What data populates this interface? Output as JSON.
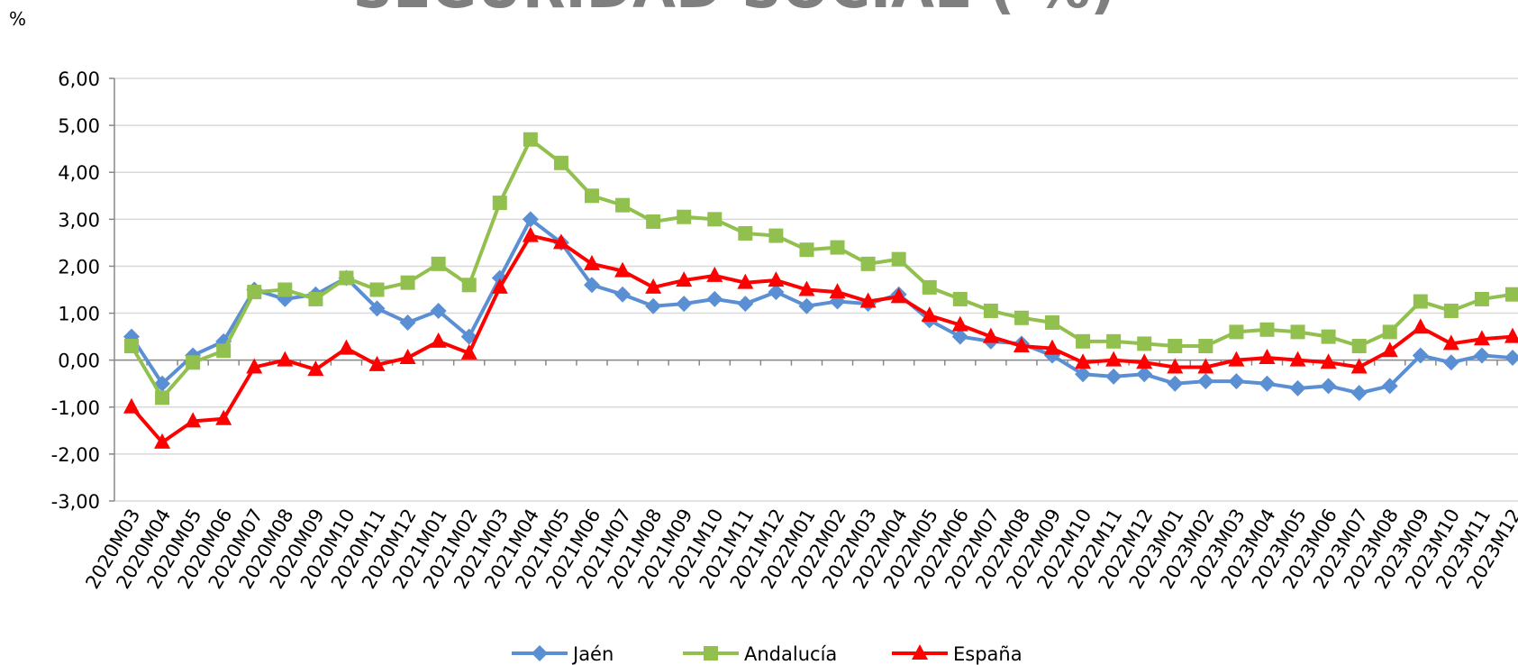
{
  "chart_data": {
    "type": "line",
    "title": "SEGURIDAD SOCIAL ( %)",
    "y_label": "%",
    "categories": [
      "2020M03",
      "2020M04",
      "2020M05",
      "2020M06",
      "2020M07",
      "2020M08",
      "2020M09",
      "2020M10",
      "2020M11",
      "2020M12",
      "2021M01",
      "2021M02",
      "2021M03",
      "2021M04",
      "2021M05",
      "2021M06",
      "2021M07",
      "2021M08",
      "2021M09",
      "2021M10",
      "2021M11",
      "2021M12",
      "2022M01",
      "2022M02",
      "2022M03",
      "2022M04",
      "2022M05",
      "2022M06",
      "2022M07",
      "2022M08",
      "2022M09",
      "2022M10",
      "2022M11",
      "2022M12",
      "2023M01",
      "2023M02",
      "2023M03",
      "2023M04",
      "2023M05",
      "2023M06",
      "2023M07",
      "2023M08",
      "2023M09",
      "2023M10",
      "2023M11",
      "2023M12"
    ],
    "series": [
      {
        "name": "Jaén",
        "color": "#5b8fd4",
        "marker": "diamond",
        "values": [
          0.5,
          -0.5,
          0.1,
          0.4,
          1.5,
          1.3,
          1.4,
          1.75,
          1.1,
          0.8,
          1.05,
          0.5,
          1.75,
          3.0,
          2.5,
          1.6,
          1.4,
          1.15,
          1.2,
          1.3,
          1.2,
          1.45,
          1.15,
          1.25,
          1.2,
          1.4,
          0.85,
          0.5,
          0.4,
          0.35,
          0.1,
          -0.3,
          -0.35,
          -0.3,
          -0.5,
          -0.45,
          -0.45,
          -0.5,
          -0.6,
          -0.55,
          -0.7,
          -0.55,
          0.1,
          -0.05,
          0.1,
          0.05
        ]
      },
      {
        "name": "Andalucía",
        "color": "#92c04e",
        "marker": "square",
        "values": [
          0.3,
          -0.8,
          -0.05,
          0.2,
          1.45,
          1.5,
          1.3,
          1.75,
          1.5,
          1.65,
          2.05,
          1.6,
          3.35,
          4.7,
          4.2,
          3.5,
          3.3,
          2.95,
          3.05,
          3.0,
          2.7,
          2.65,
          2.35,
          2.4,
          2.05,
          2.15,
          1.55,
          1.3,
          1.05,
          0.9,
          0.8,
          0.4,
          0.4,
          0.35,
          0.3,
          0.3,
          0.6,
          0.65,
          0.6,
          0.5,
          0.3,
          0.6,
          1.25,
          1.05,
          1.3,
          1.4
        ]
      },
      {
        "name": "España",
        "color": "#ff0000",
        "marker": "triangle",
        "values": [
          -1.0,
          -1.75,
          -1.3,
          -1.25,
          -0.15,
          0.0,
          -0.2,
          0.25,
          -0.1,
          0.05,
          0.4,
          0.15,
          1.55,
          2.65,
          2.5,
          2.05,
          1.9,
          1.55,
          1.7,
          1.8,
          1.65,
          1.7,
          1.5,
          1.45,
          1.25,
          1.35,
          0.95,
          0.75,
          0.5,
          0.3,
          0.25,
          -0.05,
          0.0,
          -0.05,
          -0.15,
          -0.15,
          0.0,
          0.05,
          0.0,
          -0.05,
          -0.15,
          0.2,
          0.7,
          0.35,
          0.45,
          0.5
        ]
      }
    ],
    "ylim": [
      -3,
      6
    ],
    "yticks": [
      {
        "value": -3,
        "label": "-3,00"
      },
      {
        "value": -2,
        "label": "-2,00"
      },
      {
        "value": -1,
        "label": "-1,00"
      },
      {
        "value": 0,
        "label": "0,00"
      },
      {
        "value": 1,
        "label": "1,00"
      },
      {
        "value": 2,
        "label": "2,00"
      },
      {
        "value": 3,
        "label": "3,00"
      },
      {
        "value": 4,
        "label": "4,00"
      },
      {
        "value": 5,
        "label": "5,00"
      },
      {
        "value": 6,
        "label": "6,00"
      }
    ],
    "grid": true
  }
}
